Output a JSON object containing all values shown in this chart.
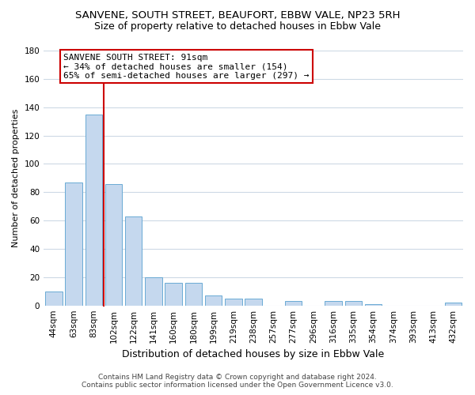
{
  "title": "SANVENE, SOUTH STREET, BEAUFORT, EBBW VALE, NP23 5RH",
  "subtitle": "Size of property relative to detached houses in Ebbw Vale",
  "xlabel": "Distribution of detached houses by size in Ebbw Vale",
  "ylabel": "Number of detached properties",
  "bar_labels": [
    "44sqm",
    "63sqm",
    "83sqm",
    "102sqm",
    "122sqm",
    "141sqm",
    "160sqm",
    "180sqm",
    "199sqm",
    "219sqm",
    "238sqm",
    "257sqm",
    "277sqm",
    "296sqm",
    "316sqm",
    "335sqm",
    "354sqm",
    "374sqm",
    "393sqm",
    "413sqm",
    "432sqm"
  ],
  "bar_values": [
    10,
    87,
    135,
    86,
    63,
    20,
    16,
    16,
    7,
    5,
    5,
    0,
    3,
    0,
    3,
    3,
    1,
    0,
    0,
    0,
    2
  ],
  "bar_color": "#c5d8ee",
  "bar_edge_color": "#6aaad4",
  "vline_color": "#cc0000",
  "vline_x_index": 2,
  "ylim": [
    0,
    180
  ],
  "yticks": [
    0,
    20,
    40,
    60,
    80,
    100,
    120,
    140,
    160,
    180
  ],
  "annotation_text": "SANVENE SOUTH STREET: 91sqm\n← 34% of detached houses are smaller (154)\n65% of semi-detached houses are larger (297) →",
  "annotation_box_facecolor": "#ffffff",
  "annotation_box_edgecolor": "#cc0000",
  "footer_line1": "Contains HM Land Registry data © Crown copyright and database right 2024.",
  "footer_line2": "Contains public sector information licensed under the Open Government Licence v3.0.",
  "bg_color": "#ffffff",
  "grid_color": "#cdd9e5",
  "title_fontsize": 9.5,
  "subtitle_fontsize": 9,
  "ylabel_fontsize": 8,
  "xlabel_fontsize": 9,
  "tick_fontsize": 7.5,
  "ann_fontsize": 8,
  "footer_fontsize": 6.5
}
